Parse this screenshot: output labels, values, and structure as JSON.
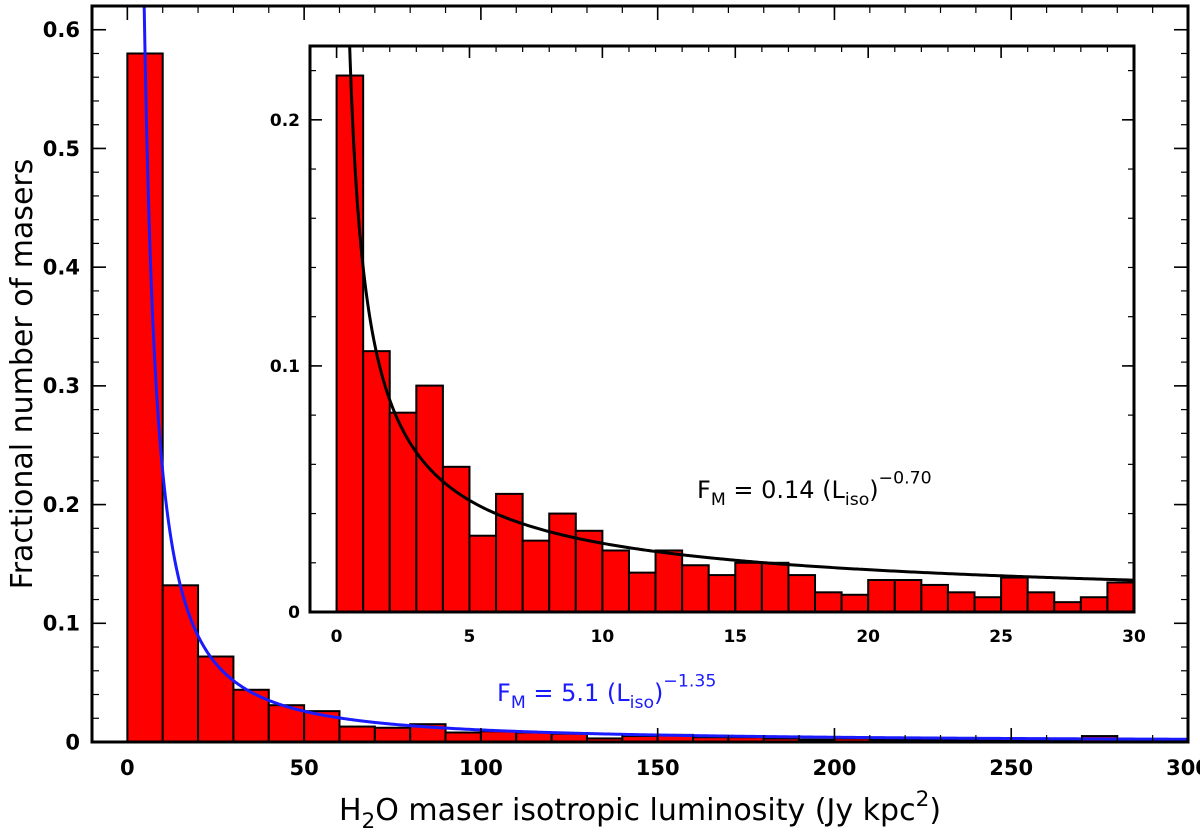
{
  "chart_data": [
    {
      "type": "bar",
      "name": "main-histogram",
      "xlabel_prefix": "H",
      "xlabel_sub": "2",
      "xlabel_mid": "O maser isotropic luminosity (Jy kpc",
      "xlabel_sup": "2",
      "xlabel_suffix": ")",
      "ylabel": "Fractional number of masers",
      "xlim": [
        -10,
        300
      ],
      "ylim": [
        0,
        0.62
      ],
      "xticks": [
        0,
        50,
        100,
        150,
        200,
        250,
        300
      ],
      "yticks": [
        0,
        0.1,
        0.2,
        0.3,
        0.4,
        0.5,
        0.6
      ],
      "bin_width": 10,
      "bin_starts": [
        0,
        10,
        20,
        30,
        40,
        50,
        60,
        70,
        80,
        90,
        100,
        110,
        120,
        130,
        140,
        150,
        160,
        170,
        180,
        190,
        200,
        210,
        220,
        230,
        240,
        250,
        260,
        270,
        280,
        290
      ],
      "values": [
        0.58,
        0.132,
        0.072,
        0.044,
        0.031,
        0.026,
        0.013,
        0.012,
        0.015,
        0.008,
        0.009,
        0.008,
        0.007,
        0.003,
        0.005,
        0.006,
        0.004,
        0.004,
        0.003,
        0.002,
        0.003,
        0.002,
        0.002,
        0.002,
        0.002,
        0.001,
        0.002,
        0.005,
        0.002,
        0.001
      ],
      "fit": {
        "amplitude": 5.1,
        "exponent": -1.35,
        "color": "#1a1aff"
      },
      "formula": {
        "lhs": "F",
        "lhs_sub": "M",
        "eq": " =  5.1 (L",
        "sub": "iso",
        "close": ")",
        "sup": "−1.35"
      },
      "bar_color": "#ff0000"
    },
    {
      "type": "bar",
      "name": "inset-histogram",
      "xlim": [
        -1,
        30
      ],
      "ylim": [
        0,
        0.23
      ],
      "xticks": [
        0,
        5,
        10,
        15,
        20,
        25,
        30
      ],
      "yticks": [
        0,
        0.1,
        0.2
      ],
      "bin_width": 1,
      "bin_starts": [
        0,
        1,
        2,
        3,
        4,
        5,
        6,
        7,
        8,
        9,
        10,
        11,
        12,
        13,
        14,
        15,
        16,
        17,
        18,
        19,
        20,
        21,
        22,
        23,
        24,
        25,
        26,
        27,
        28,
        29
      ],
      "values": [
        0.218,
        0.106,
        0.081,
        0.092,
        0.059,
        0.031,
        0.048,
        0.029,
        0.04,
        0.033,
        0.025,
        0.016,
        0.025,
        0.019,
        0.015,
        0.02,
        0.02,
        0.015,
        0.008,
        0.007,
        0.013,
        0.013,
        0.011,
        0.008,
        0.006,
        0.014,
        0.008,
        0.004,
        0.006,
        0.012
      ],
      "fit": {
        "amplitude": 0.14,
        "exponent": -0.7,
        "color": "#000000"
      },
      "formula": {
        "lhs": "F",
        "lhs_sub": "M",
        "eq": " =  0.14 (L",
        "sub": "iso",
        "close": ")",
        "sup": "−0.70"
      },
      "bar_color": "#ff0000"
    }
  ]
}
